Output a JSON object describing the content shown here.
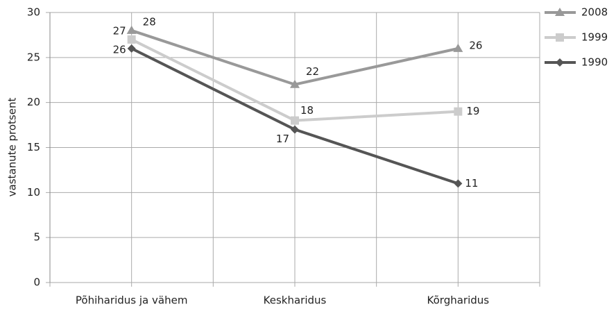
{
  "chart_data": {
    "type": "line",
    "y_label": "vastanute protsent",
    "categories": [
      "Põhiharidus ja vähem",
      "Keskharidus",
      "Kõrgharidus"
    ],
    "series": [
      {
        "name": "2008",
        "color": "#999999",
        "marker": "triangle",
        "values": [
          28,
          22,
          26
        ]
      },
      {
        "name": "1999",
        "color": "#cccccc",
        "marker": "square",
        "values": [
          27,
          18,
          19
        ]
      },
      {
        "name": "1990",
        "color": "#555555",
        "marker": "diamond",
        "values": [
          26,
          17,
          11
        ]
      }
    ],
    "ylim": [
      0,
      30
    ],
    "yticks": [
      0,
      5,
      10,
      15,
      20,
      25,
      30
    ],
    "grid": true,
    "legend": "right"
  }
}
